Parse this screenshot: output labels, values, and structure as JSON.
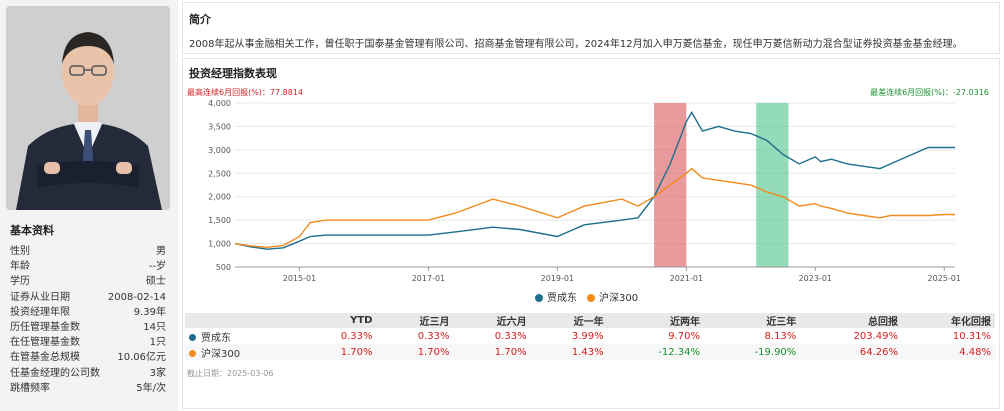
{
  "left": {
    "title": "基本资料",
    "rows": [
      {
        "label": "性别",
        "value": "男"
      },
      {
        "label": "年龄",
        "value": "--岁"
      },
      {
        "label": "学历",
        "value": "硕士"
      },
      {
        "label": "证券从业日期",
        "value": "2008-02-14"
      },
      {
        "label": "投资经理年限",
        "value": "9.39年"
      },
      {
        "label": "历任管理基金数",
        "value": "14只"
      },
      {
        "label": "在任管理基金数",
        "value": "1只"
      },
      {
        "label": "在管基金总规模",
        "value": "10.06亿元"
      },
      {
        "label": "任基金经理的公司数",
        "value": "3家"
      },
      {
        "label": "跳槽频率",
        "value": "5年/次"
      }
    ]
  },
  "intro": {
    "title": "简介",
    "text": "2008年起从事金融相关工作，曾任职于国泰基金管理有限公司、招商基金管理有限公司，2024年12月加入申万菱信基金，现任申万菱信新动力混合型证券投资基金基金经理。"
  },
  "perf": {
    "title": "投资经理指数表现",
    "max_label": "最高连续6月回报(%)：77.8814",
    "min_label": "最差连续6月回报(%)：-27.0316"
  },
  "chart_data": {
    "type": "line",
    "x_ticks": [
      "2015-01",
      "2017-01",
      "2019-01",
      "2021-01",
      "2023-01",
      "2025-01"
    ],
    "y_ticks": [
      500,
      1000,
      1500,
      2000,
      2500,
      3000,
      3500,
      4000
    ],
    "ylim": [
      500,
      4000
    ],
    "xlim": [
      "2014-01",
      "2025-03"
    ],
    "highlight_red": [
      "2020-07",
      "2021-01"
    ],
    "highlight_green": [
      "2022-02",
      "2022-08"
    ],
    "series": [
      {
        "name": "贾成东",
        "color": "#1f6e8e",
        "x": [
          "2014-01",
          "2014-04",
          "2014-07",
          "2014-10",
          "2015-01",
          "2015-03",
          "2015-06",
          "2015-09",
          "2016-01",
          "2016-06",
          "2017-01",
          "2017-06",
          "2018-01",
          "2018-06",
          "2019-01",
          "2019-06",
          "2020-01",
          "2020-04",
          "2020-07",
          "2020-10",
          "2021-01",
          "2021-02",
          "2021-04",
          "2021-07",
          "2021-10",
          "2022-01",
          "2022-02",
          "2022-04",
          "2022-07",
          "2022-10",
          "2023-01",
          "2023-02",
          "2023-04",
          "2023-07",
          "2023-10",
          "2024-01",
          "2024-03",
          "2024-07",
          "2024-10",
          "2025-01",
          "2025-03"
        ],
        "y": [
          1000,
          930,
          880,
          910,
          1050,
          1150,
          1180,
          1180,
          1180,
          1180,
          1180,
          1250,
          1350,
          1300,
          1150,
          1400,
          1500,
          1550,
          2000,
          2700,
          3600,
          3800,
          3400,
          3500,
          3400,
          3350,
          3300,
          3200,
          2900,
          2700,
          2850,
          2750,
          2800,
          2700,
          2650,
          2600,
          2700,
          2900,
          3050,
          3050,
          3050
        ]
      },
      {
        "name": "沪深300",
        "color": "#f28a1c",
        "x": [
          "2014-01",
          "2014-04",
          "2014-07",
          "2014-10",
          "2015-01",
          "2015-03",
          "2015-06",
          "2015-09",
          "2016-01",
          "2016-06",
          "2017-01",
          "2017-06",
          "2018-01",
          "2018-06",
          "2019-01",
          "2019-06",
          "2020-01",
          "2020-04",
          "2020-07",
          "2020-10",
          "2021-01",
          "2021-02",
          "2021-04",
          "2021-07",
          "2021-10",
          "2022-01",
          "2022-02",
          "2022-04",
          "2022-07",
          "2022-10",
          "2023-01",
          "2023-02",
          "2023-04",
          "2023-07",
          "2023-10",
          "2024-01",
          "2024-03",
          "2024-07",
          "2024-10",
          "2025-01",
          "2025-03"
        ],
        "y": [
          1000,
          950,
          920,
          960,
          1150,
          1450,
          1500,
          1500,
          1500,
          1500,
          1500,
          1650,
          1950,
          1800,
          1550,
          1800,
          1950,
          1800,
          2000,
          2250,
          2500,
          2600,
          2400,
          2350,
          2300,
          2250,
          2200,
          2100,
          2000,
          1800,
          1850,
          1800,
          1750,
          1650,
          1600,
          1550,
          1600,
          1600,
          1600,
          1620,
          1620
        ]
      }
    ]
  },
  "legend": [
    {
      "name": "贾成东",
      "color": "#1f6e8e"
    },
    {
      "name": "沪深300",
      "color": "#f28a1c"
    }
  ],
  "table": {
    "headers": [
      "",
      "YTD",
      "近三月",
      "近六月",
      "近一年",
      "近两年",
      "近三年",
      "总回报",
      "年化回报"
    ],
    "rows": [
      {
        "name": "贾成东",
        "color": "#1f6e8e",
        "cells": [
          "0.33%",
          "0.33%",
          "0.33%",
          "3.99%",
          "9.70%",
          "8.13%",
          "203.49%",
          "10.31%"
        ]
      },
      {
        "name": "沪深300",
        "color": "#f28a1c",
        "cells": [
          "1.70%",
          "1.70%",
          "1.70%",
          "1.43%",
          "-12.34%",
          "-19.90%",
          "64.26%",
          "4.48%"
        ]
      }
    ],
    "as_of": "截止日期：2025-03-06"
  }
}
